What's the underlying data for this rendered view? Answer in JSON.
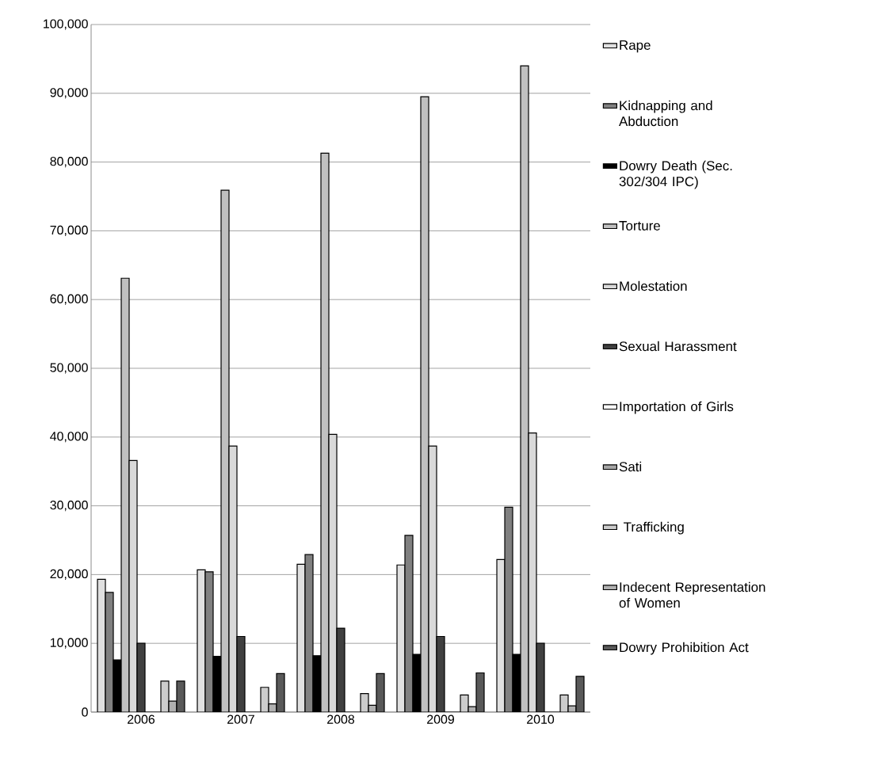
{
  "chart_data": {
    "type": "bar",
    "categories": [
      "2006",
      "2007",
      "2008",
      "2009",
      "2010"
    ],
    "series": [
      {
        "name": "Rape",
        "color": "#e0e0e0",
        "values": [
          19300,
          20700,
          21500,
          21400,
          22200
        ]
      },
      {
        "name": "Kidnapping and Abduction",
        "color": "#808080",
        "values": [
          17400,
          20400,
          22900,
          25700,
          29800
        ]
      },
      {
        "name": "Dowry Death (Sec. 302/304 IPC)",
        "color": "#000000",
        "values": [
          7600,
          8100,
          8200,
          8400,
          8400
        ]
      },
      {
        "name": "Torture",
        "color": "#c0c0c0",
        "values": [
          63100,
          75900,
          81300,
          89500,
          94000
        ]
      },
      {
        "name": "Molestation",
        "color": "#d9d9d9",
        "values": [
          36600,
          38700,
          40400,
          38700,
          40600
        ]
      },
      {
        "name": "Sexual Harassment",
        "color": "#404040",
        "values": [
          10000,
          11000,
          12200,
          11000,
          10000
        ]
      },
      {
        "name": "Importation of Girls",
        "color": "#ffffff",
        "values": [
          0,
          0,
          0,
          0,
          0
        ]
      },
      {
        "name": "Sati",
        "color": "#a6a6a6",
        "values": [
          0,
          0,
          0,
          0,
          0
        ]
      },
      {
        "name": " Trafficking",
        "color": "#cccccc",
        "values": [
          4500,
          3600,
          2700,
          2500,
          2500
        ]
      },
      {
        "name": "Indecent Representation of Women",
        "color": "#b0b0b0",
        "values": [
          1600,
          1200,
          1000,
          800,
          900
        ]
      },
      {
        "name": "Dowry Prohibition Act",
        "color": "#595959",
        "values": [
          4500,
          5600,
          5600,
          5700,
          5200
        ]
      }
    ],
    "ylim": [
      0,
      100000
    ],
    "yticks": [
      {
        "value": 0,
        "label": "0"
      },
      {
        "value": 10000,
        "label": "10,000"
      },
      {
        "value": 20000,
        "label": "20,000"
      },
      {
        "value": 30000,
        "label": "30,000"
      },
      {
        "value": 40000,
        "label": "40,000"
      },
      {
        "value": 50000,
        "label": "50,000"
      },
      {
        "value": 60000,
        "label": "60,000"
      },
      {
        "value": 70000,
        "label": "70,000"
      },
      {
        "value": 80000,
        "label": "80,000"
      },
      {
        "value": 90000,
        "label": "90,000"
      },
      {
        "value": 100000,
        "label": "100,000"
      }
    ],
    "grid": "y",
    "legend": "right"
  }
}
